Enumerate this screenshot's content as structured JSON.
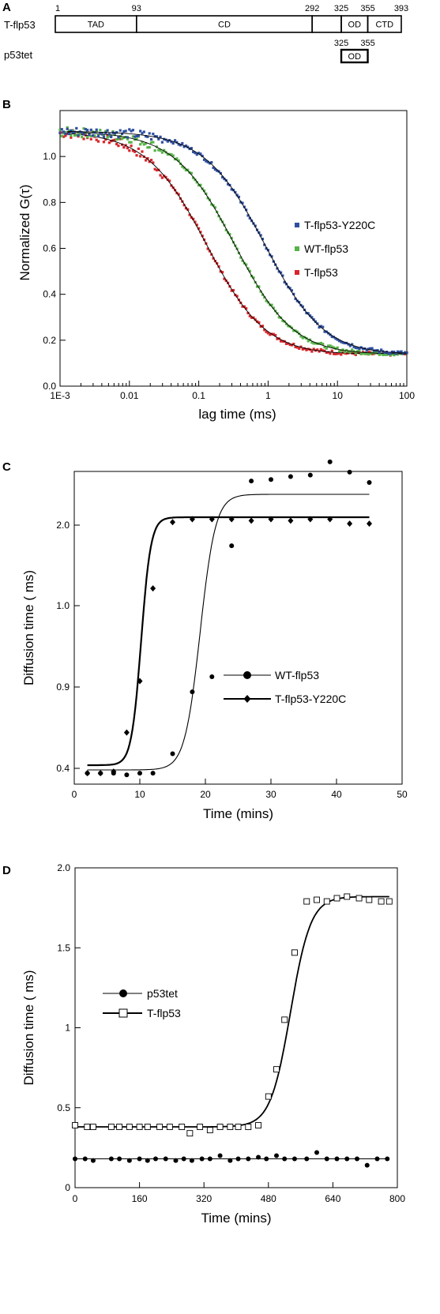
{
  "chart_data": [
    {
      "panel": "A",
      "type": "table",
      "rows": [
        {
          "label": "T-flp53",
          "boundaries": [
            1,
            93,
            292,
            325,
            355,
            393
          ],
          "domains": [
            {
              "name": "TAD",
              "start": 1,
              "end": 93
            },
            {
              "name": "CD",
              "start": 93,
              "end": 292
            },
            {
              "name": "",
              "start": 292,
              "end": 325
            },
            {
              "name": "OD",
              "start": 325,
              "end": 355
            },
            {
              "name": "CTD",
              "start": 355,
              "end": 393
            }
          ]
        },
        {
          "label": "p53tet",
          "boundaries": [
            325,
            355
          ],
          "domains": [
            {
              "name": "OD",
              "start": 325,
              "end": 355
            }
          ]
        }
      ]
    },
    {
      "panel": "B",
      "type": "scatter",
      "xlabel": "lag time (ms)",
      "ylabel": "Normalized G(τ)",
      "xscale": "log",
      "xlim": [
        0.001,
        100
      ],
      "xticks": [
        "1E-3",
        "0.01",
        "0.1",
        "1",
        "10",
        "100"
      ],
      "ylim": [
        0.0,
        1.2
      ],
      "yticks": [
        "0.0",
        "0.2",
        "0.4",
        "0.6",
        "0.8",
        "1.0"
      ],
      "legend": "center-right",
      "series": [
        {
          "name": "T-flp53-Y220C",
          "color": "#2f4fa0",
          "tau": 0.9,
          "plateau": 1.03,
          "offset": 0.14
        },
        {
          "name": "WT-flp53",
          "color": "#56b347",
          "tau": 0.33,
          "plateau": 1.03,
          "offset": 0.14
        },
        {
          "name": "T-flp53",
          "color": "#d8262b",
          "tau": 0.13,
          "plateau": 1.03,
          "offset": 0.14
        }
      ]
    },
    {
      "panel": "C",
      "type": "scatter",
      "xlabel": "Time (mins)",
      "ylabel": "Diffusion time ( ms)",
      "xlim": [
        0,
        50
      ],
      "xticks": [
        "0",
        "10",
        "20",
        "30",
        "40",
        "50"
      ],
      "yticks": [
        "0.4",
        "0.9",
        "1.0",
        "2.0"
      ],
      "legend": "center-right",
      "series": [
        {
          "name": "WT-flp53",
          "marker": "circle",
          "x": [
            2,
            4,
            6,
            8,
            10,
            12,
            15,
            18,
            21,
            24,
            27,
            30,
            33,
            36,
            39,
            42,
            45
          ],
          "y": [
            0.37,
            0.37,
            0.37,
            0.36,
            0.37,
            0.37,
            0.49,
            0.87,
            0.97,
            1.86,
            2.3,
            2.31,
            2.33,
            2.34,
            2.43,
            2.36,
            2.29
          ]
        },
        {
          "name": "T-flp53-Y220C",
          "marker": "diamond",
          "x": [
            2,
            4,
            6,
            8,
            10,
            12,
            15,
            18,
            21,
            24,
            27,
            30,
            33,
            36,
            39,
            42,
            45
          ],
          "y": [
            0.37,
            0.37,
            0.38,
            0.62,
            0.94,
            1.57,
            2.02,
            2.04,
            2.04,
            2.04,
            2.03,
            2.04,
            2.03,
            2.04,
            2.04,
            2.01,
            2.01
          ]
        }
      ]
    },
    {
      "panel": "D",
      "type": "scatter",
      "xlabel": "Time (mins)",
      "ylabel": "Diffusion time ( ms)",
      "xlim": [
        0,
        800
      ],
      "xticks": [
        "0",
        "160",
        "320",
        "480",
        "640",
        "800"
      ],
      "ylim": [
        0,
        2.0
      ],
      "yticks": [
        "0",
        "0.5",
        "1",
        "1.5",
        "2.0"
      ],
      "legend": "center-left",
      "series": [
        {
          "name": "p53tet",
          "marker": "filled-circle",
          "x": [
            0,
            25,
            45,
            90,
            110,
            135,
            160,
            180,
            200,
            225,
            250,
            270,
            290,
            315,
            335,
            360,
            385,
            405,
            430,
            455,
            475,
            500,
            520,
            545,
            575,
            600,
            625,
            650,
            675,
            700,
            725,
            750,
            775
          ],
          "y": [
            0.18,
            0.18,
            0.17,
            0.18,
            0.18,
            0.17,
            0.18,
            0.17,
            0.18,
            0.18,
            0.17,
            0.18,
            0.17,
            0.18,
            0.18,
            0.2,
            0.17,
            0.18,
            0.18,
            0.19,
            0.18,
            0.2,
            0.18,
            0.18,
            0.18,
            0.22,
            0.18,
            0.18,
            0.18,
            0.18,
            0.14,
            0.18,
            0.18
          ]
        },
        {
          "name": "T-flp53",
          "marker": "open-square",
          "x": [
            0,
            30,
            45,
            90,
            110,
            135,
            160,
            180,
            210,
            235,
            265,
            285,
            310,
            335,
            360,
            385,
            405,
            430,
            455,
            480,
            500,
            520,
            545,
            575,
            600,
            625,
            650,
            675,
            705,
            730,
            760,
            780
          ],
          "y": [
            0.39,
            0.38,
            0.38,
            0.38,
            0.38,
            0.38,
            0.38,
            0.38,
            0.38,
            0.38,
            0.38,
            0.34,
            0.38,
            0.36,
            0.38,
            0.38,
            0.38,
            0.38,
            0.39,
            0.57,
            0.74,
            1.05,
            1.47,
            1.79,
            1.8,
            1.79,
            1.81,
            1.82,
            1.81,
            1.8,
            1.79,
            1.79
          ]
        }
      ]
    }
  ]
}
